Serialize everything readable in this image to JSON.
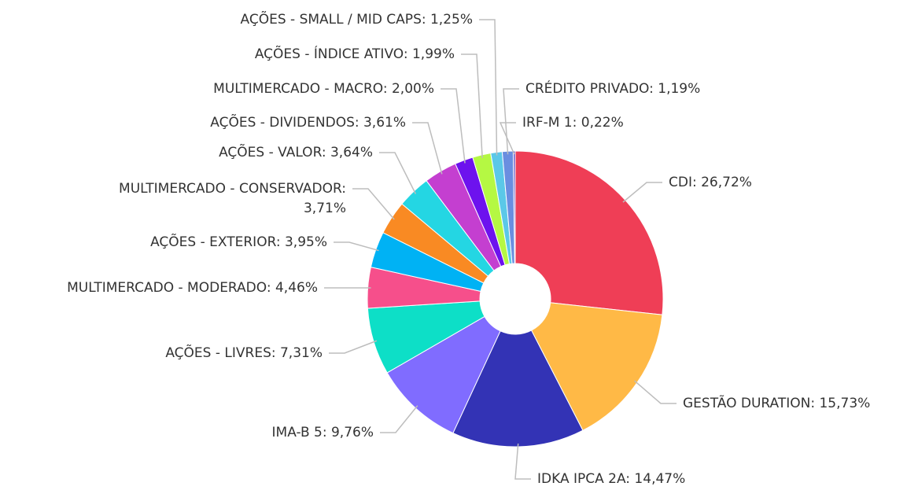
{
  "chart_data": {
    "type": "donut",
    "values": [
      26.72,
      15.73,
      14.47,
      9.76,
      7.31,
      4.46,
      3.95,
      3.71,
      3.64,
      3.61,
      2.0,
      1.99,
      1.25,
      1.19,
      0.22
    ],
    "value_labels": [
      "CDI: 26,72%",
      "GESTÃO DURATION: 15,73%",
      "IDKA IPCA 2A: 14,47%",
      "IMA-B 5: 9,76%",
      "AÇÕES - LIVRES: 7,31%",
      "MULTIMERCADO - MODERADO: 4,46%",
      "AÇÕES - EXTERIOR: 3,95%",
      "MULTIMERCADO - CONSERVADOR: 3,71%",
      "AÇÕES - VALOR: 3,64%",
      "AÇÕES - DIVIDENDOS: 3,61%",
      "MULTIMERCADO - MACRO: 2,00%",
      "AÇÕES - ÍNDICE ATIVO: 1,99%",
      "AÇÕES - SMALL / MID CAPS: 1,25%",
      "CRÉDITO PRIVADO: 1,19%",
      "IRF-M 1: 0,22%"
    ],
    "colors": [
      "#ef3e56",
      "#ffb946",
      "#3333b5",
      "#806cff",
      "#0ddfc7",
      "#f64f8b",
      "#00b2f4",
      "#f98a23",
      "#24d6e3",
      "#c43fd0",
      "#6d12ee",
      "#b5f843",
      "#5bc8e8",
      "#6a8ee0",
      "#6055c8"
    ]
  }
}
